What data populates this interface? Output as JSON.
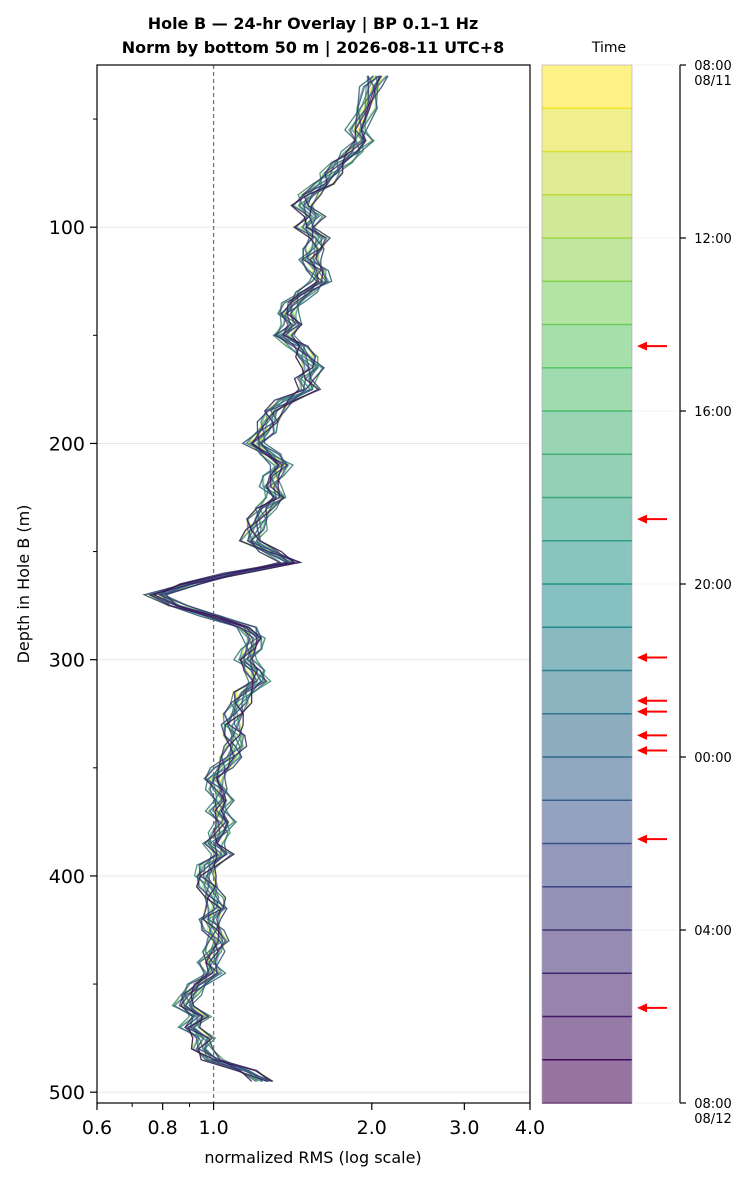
{
  "chart_data": {
    "type": "line",
    "title_line1": "Hole B — 24-hr Overlay  |  BP 0.1–1 Hz",
    "title_line2": "Norm by bottom 50 m  |  2026-08-11 UTC+8",
    "xlabel": "normalized RMS  (log scale)",
    "ylabel": "Depth in Hole B (m)",
    "x_scale": "log",
    "xlim": [
      0.6,
      4.0
    ],
    "ylim": [
      505,
      25
    ],
    "x_ticks": [
      "0.6",
      "0.8",
      "1.0",
      "2.0",
      "3.0",
      "4.0"
    ],
    "x_tick_values": [
      0.6,
      0.8,
      1.0,
      2.0,
      3.0,
      4.0
    ],
    "y_ticks": [
      "100",
      "200",
      "300",
      "400",
      "500"
    ],
    "y_tick_values": [
      100,
      200,
      300,
      400,
      500
    ],
    "reference_line_x": 1.0,
    "grid": true,
    "series_count": 24,
    "profile": {
      "depth": [
        30,
        35,
        45,
        55,
        60,
        65,
        70,
        75,
        80,
        85,
        90,
        95,
        100,
        105,
        110,
        115,
        120,
        125,
        130,
        135,
        140,
        145,
        150,
        155,
        160,
        165,
        170,
        175,
        180,
        185,
        190,
        195,
        200,
        205,
        210,
        215,
        220,
        225,
        230,
        235,
        240,
        245,
        250,
        255,
        260,
        265,
        270,
        275,
        280,
        285,
        290,
        295,
        300,
        305,
        310,
        315,
        320,
        325,
        330,
        335,
        340,
        345,
        350,
        355,
        360,
        365,
        370,
        375,
        380,
        385,
        390,
        395,
        400,
        405,
        410,
        415,
        420,
        425,
        430,
        435,
        440,
        445,
        450,
        455,
        460,
        465,
        470,
        475,
        480,
        485,
        490,
        495
      ],
      "rms": [
        2.05,
        2.0,
        1.95,
        1.88,
        1.92,
        1.85,
        1.75,
        1.68,
        1.62,
        1.52,
        1.48,
        1.55,
        1.5,
        1.58,
        1.56,
        1.52,
        1.58,
        1.6,
        1.5,
        1.42,
        1.38,
        1.42,
        1.35,
        1.45,
        1.5,
        1.55,
        1.5,
        1.52,
        1.38,
        1.3,
        1.28,
        1.25,
        1.2,
        1.28,
        1.35,
        1.3,
        1.28,
        1.32,
        1.25,
        1.22,
        1.2,
        1.18,
        1.28,
        1.4,
        1.1,
        0.9,
        0.78,
        0.85,
        1.0,
        1.15,
        1.2,
        1.18,
        1.15,
        1.2,
        1.22,
        1.15,
        1.12,
        1.1,
        1.08,
        1.1,
        1.1,
        1.08,
        1.04,
        1.0,
        1.02,
        1.04,
        1.02,
        1.05,
        1.03,
        1.0,
        1.04,
        0.98,
        0.96,
        0.98,
        1.0,
        1.02,
        0.98,
        1.0,
        1.02,
        1.0,
        0.98,
        1.0,
        0.94,
        0.9,
        0.88,
        0.94,
        0.9,
        0.96,
        0.95,
        1.0,
        1.15,
        1.25
      ]
    }
  },
  "colorbar": {
    "title": "Time",
    "ticks": [
      "08:00\n08/11",
      "12:00",
      "16:00",
      "20:00",
      "00:00",
      "04:00",
      "08:00\n08/12"
    ],
    "tick_hours": [
      0,
      4,
      8,
      12,
      16,
      20,
      24
    ],
    "steps": 24,
    "colormap": "viridis",
    "arrow_hours": [
      6.5,
      10.5,
      13.7,
      14.7,
      14.95,
      15.5,
      15.85,
      17.9,
      21.8
    ],
    "arrow_color": "#ff0000"
  }
}
